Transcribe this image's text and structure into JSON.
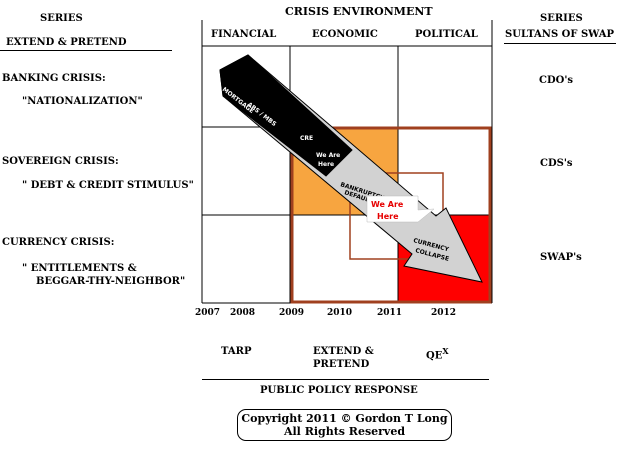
{
  "left_header": {
    "line1": "SERIES",
    "line2": "EXTEND & PRETEND"
  },
  "right_header": {
    "line1": "SERIES",
    "line2": "SULTANS OF SWAP"
  },
  "top_title": "CRISIS ENVIRONMENT",
  "columns": [
    "FINANCIAL",
    "ECONOMIC",
    "POLITICAL"
  ],
  "rows": [
    {
      "title": "BANKING CRISIS:",
      "sub": "\"NATIONALIZATION\"",
      "sub2": "",
      "right": "CDO's"
    },
    {
      "title": "SOVEREIGN CRISIS:",
      "sub": "\" DEBT & CREDIT STIMULUS\"",
      "sub2": "",
      "right": "CDS's"
    },
    {
      "title": "CURRENCY CRISIS:",
      "sub": "\" ENTITLEMENTS &",
      "sub2": "BEGGAR-THY-NEIGHBOR\"",
      "right": "SWAP's"
    }
  ],
  "years": [
    "2007",
    "2008",
    "2009",
    "2010",
    "2011",
    "2012"
  ],
  "arrow_labels": {
    "mortgage": "MORTGAGE",
    "abs_mbs": "ABS / MBS",
    "cre": "CRE",
    "we_are_here_small": [
      "We Are",
      "Here"
    ],
    "bankruptcy": [
      "BANKRUPTCY",
      "DEFAULTS"
    ],
    "currency": [
      "CURRENCY",
      "COLLAPSE"
    ]
  },
  "callout": {
    "line1": "We Are",
    "line2": "Here"
  },
  "policy": {
    "tarp": "TARP",
    "extend1": "EXTEND &",
    "extend2": "PRETEND",
    "qe": "QE",
    "qe_sup": "X"
  },
  "bottom_title": "PUBLIC POLICY RESPONSE",
  "copyright": {
    "line1": "Copyright 2011  © Gordon T Long",
    "line2": "All Rights Reserved"
  },
  "colors": {
    "orange": "#f7a540",
    "red": "#ff0000",
    "brown": "#a0401f",
    "gray": "#d2d2d2"
  }
}
